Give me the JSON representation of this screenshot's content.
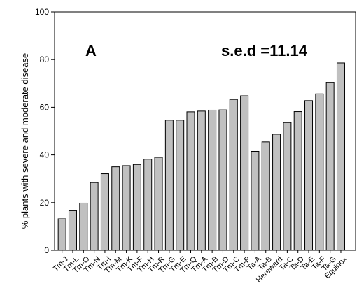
{
  "chart_data": {
    "type": "bar",
    "categories": [
      "Tm-J",
      "Tm-L",
      "Tm-O",
      "Tm-N",
      "Tm-I",
      "Tm-M",
      "Tm-K",
      "Tm-F",
      "Tm-H",
      "Tm-R",
      "Tm-G",
      "Tm-E",
      "Tm-Q",
      "Tm-A",
      "Tm-B",
      "Tm-D",
      "Tm-C",
      "Tm-P",
      "Ta-A",
      "Ta-B",
      "Hereward",
      "Ta-C",
      "Ta-D",
      "Ta-E",
      "Ta-F",
      "Ta-G",
      "Equinox"
    ],
    "values": [
      13.2,
      16.6,
      19.8,
      28.4,
      32.1,
      35.0,
      35.5,
      36.0,
      38.2,
      39.0,
      54.6,
      54.6,
      58.1,
      58.4,
      58.8,
      58.9,
      63.3,
      64.8,
      41.5,
      45.5,
      48.7,
      53.6,
      58.2,
      62.8,
      65.6,
      70.3,
      78.6
    ],
    "title": "",
    "xlabel": "",
    "ylabel": "% plants with severe and moderate disease",
    "ylim": [
      0,
      100
    ],
    "yticks": [
      0,
      20,
      40,
      60,
      80,
      100
    ],
    "grid": false,
    "bar_color": "#c0c0c0",
    "annotations": {
      "panel_label": "A",
      "sed_label": "s.e.d =11.14"
    }
  }
}
